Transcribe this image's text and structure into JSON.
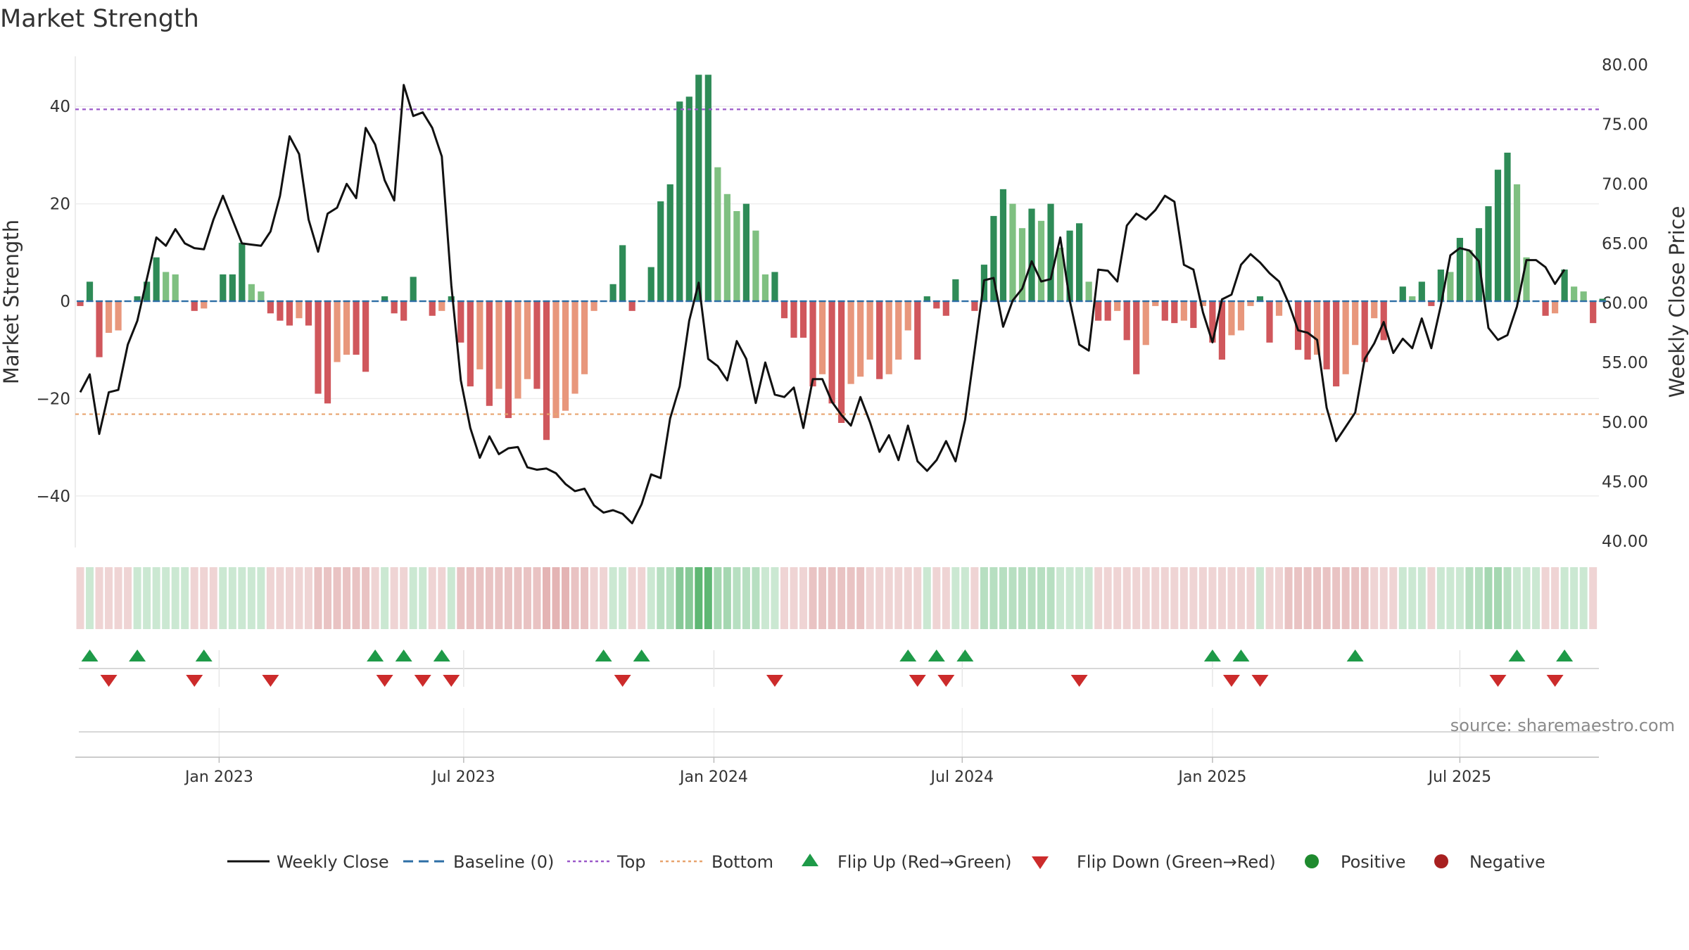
{
  "chart_data": {
    "type": "bar+line",
    "title": "Market Strength",
    "ylabel_left": "Market Strength",
    "ylabel_right": "Weekly Close Price",
    "left_ylim": [
      -50.5,
      50.0
    ],
    "right_ylim": [
      39.0,
      81.0
    ],
    "left_ticks": [
      "40",
      "20",
      "0",
      "−20",
      "−40"
    ],
    "left_tick_values": [
      40,
      20,
      0,
      -20,
      -40
    ],
    "right_ticks": [
      "80.00",
      "75.00",
      "70.00",
      "65.00",
      "60.00",
      "55.00",
      "50.00",
      "45.00",
      "40.00"
    ],
    "right_tick_values": [
      80,
      75,
      70,
      65,
      60,
      55,
      50,
      45,
      40
    ],
    "top_threshold": 39.4,
    "bottom_threshold": -23.2,
    "x_tick_labels": [
      "Jan 2023",
      "Jul 2023",
      "Jan 2024",
      "Jul 2024",
      "Jan 2025",
      "Jul 2025"
    ],
    "x_tick_weeks": [
      14.6,
      40.3,
      66.6,
      92.7,
      119,
      145
    ],
    "strength": [
      -1,
      4,
      -11.5,
      -6.5,
      -6,
      0,
      1,
      4,
      9,
      6,
      5.5,
      0,
      -2,
      -1.5,
      0,
      5.5,
      5.5,
      12,
      3.5,
      2,
      -2.5,
      -4,
      -5,
      -3.5,
      -5,
      -19,
      -21,
      -12.5,
      -11,
      -11,
      -14.5,
      0,
      1,
      -2.5,
      -4,
      5,
      0,
      -3,
      -2,
      1,
      -8.5,
      -17.5,
      -14,
      -21.5,
      -18,
      -24,
      -20,
      -16,
      -18,
      -28.5,
      -24,
      -22.5,
      -19,
      -15,
      -2,
      0,
      3.5,
      11.5,
      -2,
      0,
      7,
      20.5,
      24,
      41,
      42,
      46.5,
      46.5,
      27.5,
      22,
      18.5,
      20,
      14.5,
      5.5,
      6,
      -3.5,
      -7.5,
      -7.5,
      -17.5,
      -15,
      -21,
      -25,
      -17,
      -15.5,
      -12,
      -16,
      -15,
      -12,
      -6,
      -12,
      1,
      -1.5,
      -3,
      4.5,
      0,
      -2,
      7.5,
      17.5,
      23,
      20,
      15,
      19,
      16.5,
      20,
      11,
      14.5,
      16,
      4,
      -4,
      -4,
      -2,
      -8,
      -15,
      -9,
      -1,
      -4,
      -4.5,
      -4,
      -5.5,
      -1,
      -8.5,
      -12,
      -7,
      -6,
      -1,
      1,
      -8.5,
      -3,
      0,
      -10,
      -12,
      -11,
      -14,
      -17.5,
      -15,
      -9,
      -12.5,
      -3.5,
      -8,
      0,
      3,
      1,
      4,
      -1,
      6.5,
      6,
      13,
      10.5,
      15,
      19.5,
      27,
      30.5,
      24,
      9,
      0,
      -3,
      -2.5,
      6.5,
      3,
      2,
      -4.5,
      0.5
    ],
    "weekly_close": [
      52.5,
      54,
      49,
      52.5,
      52.7,
      56.5,
      58.5,
      62,
      65.5,
      64.8,
      66.2,
      65,
      64.6,
      64.5,
      67,
      69,
      67,
      65,
      64.9,
      64.8,
      66,
      69,
      74,
      72.5,
      67,
      64.3,
      67.5,
      68,
      70,
      68.8,
      74.7,
      73.3,
      70.3,
      68.6,
      78.3,
      75.7,
      76,
      74.7,
      72.3,
      61.5,
      53.5,
      49.5,
      47,
      48.8,
      47.3,
      47.8,
      47.9,
      46.2,
      46,
      46.1,
      45.7,
      44.8,
      44.2,
      44.4,
      43,
      42.4,
      42.6,
      42.3,
      41.5,
      43.1,
      45.6,
      45.3,
      50.3,
      53,
      58.5,
      61.7,
      55.3,
      54.7,
      53.5,
      56.8,
      55.3,
      51.6,
      55,
      52.3,
      52.1,
      52.9,
      49.5,
      53.6,
      53.6,
      51.7,
      50.6,
      49.7,
      52.1,
      50,
      47.5,
      48.9,
      46.8,
      49.7,
      46.7,
      45.9,
      46.8,
      48.4,
      46.7,
      50.2,
      56,
      61.9,
      62.1,
      58,
      60.2,
      61.2,
      63.5,
      61.8,
      62,
      65.5,
      60.2,
      56.5,
      56,
      62.8,
      62.7,
      61.8,
      66.5,
      67.5,
      67,
      67.8,
      69,
      68.5,
      63.2,
      62.8,
      59.2,
      56.7,
      60.3,
      60.7,
      63.2,
      64.1,
      63.4,
      62.5,
      61.8,
      60,
      57.7,
      57.5,
      56.9,
      51.2,
      48.4,
      49.6,
      50.8,
      55.3,
      56.6,
      58.4,
      55.8,
      57,
      56.2,
      58.7,
      56.2,
      59.8,
      64,
      64.6,
      64.4,
      63.5,
      57.9,
      56.9,
      57.3,
      59.7,
      63.6,
      63.6,
      63,
      61.6,
      62.8
    ],
    "band_intensity": [
      0.17,
      0.17,
      0.17,
      0.17,
      0.17,
      0.17,
      0.17,
      0.17,
      0.17,
      0.17,
      0.17,
      0.17,
      0.17,
      0.17,
      0.17,
      0.17,
      0.17,
      0.17,
      0.17,
      0.17,
      0.17,
      0.17,
      0.17,
      0.17,
      0.17,
      0.28,
      0.28,
      0.28,
      0.28,
      0.28,
      0.28,
      0.17,
      0.17,
      0.17,
      0.17,
      0.17,
      0.17,
      0.17,
      0.17,
      0.17,
      0.28,
      0.28,
      0.28,
      0.28,
      0.28,
      0.28,
      0.28,
      0.28,
      0.28,
      0.38,
      0.38,
      0.38,
      0.28,
      0.28,
      0.17,
      0.17,
      0.17,
      0.17,
      0.17,
      0.17,
      0.17,
      0.28,
      0.28,
      0.55,
      0.55,
      0.78,
      0.78,
      0.38,
      0.38,
      0.28,
      0.28,
      0.28,
      0.17,
      0.17,
      0.17,
      0.17,
      0.17,
      0.28,
      0.28,
      0.28,
      0.28,
      0.28,
      0.28,
      0.17,
      0.17,
      0.17,
      0.17,
      0.17,
      0.17,
      0.17,
      0.17,
      0.17,
      0.17,
      0.17,
      0.17,
      0.28,
      0.28,
      0.28,
      0.28,
      0.28,
      0.28,
      0.28,
      0.28,
      0.17,
      0.17,
      0.17,
      0.17,
      0.17,
      0.17,
      0.17,
      0.17,
      0.17,
      0.17,
      0.17,
      0.17,
      0.17,
      0.17,
      0.17,
      0.17,
      0.17,
      0.17,
      0.17,
      0.17,
      0.17,
      0.17,
      0.17,
      0.17,
      0.28,
      0.28,
      0.28,
      0.28,
      0.28,
      0.28,
      0.28,
      0.28,
      0.28,
      0.17,
      0.17,
      0.17,
      0.17,
      0.17,
      0.17,
      0.17,
      0.17,
      0.17,
      0.17,
      0.28,
      0.28,
      0.38,
      0.38,
      0.28,
      0.17,
      0.17,
      0.17,
      0.17,
      0.17,
      0.17,
      0.17,
      0.17,
      0.17
    ],
    "flip_up_weeks": [
      1,
      6,
      13,
      31,
      34,
      38,
      55,
      59,
      87,
      90,
      93,
      119,
      122,
      134,
      151,
      156
    ],
    "flip_down_weeks": [
      3,
      12,
      20,
      32,
      36,
      39,
      57,
      73,
      88,
      91,
      105,
      121,
      124,
      149,
      155
    ],
    "legend": [
      "Weekly Close",
      "Baseline (0)",
      "Top",
      "Bottom",
      "Flip Up (Red→Green)",
      "Flip Down (Green→Red)",
      "Positive",
      "Negative"
    ],
    "source": "source: sharemaestro.com"
  },
  "colors": {
    "pos_dark": "#2e8b57",
    "pos_light": "#7fc081",
    "neg_dark": "#d0575c",
    "neg_light": "#e8977c",
    "line": "#111111",
    "baseline": "#2e6fa6",
    "top": "#9b59c9",
    "bottom": "#e8a46f",
    "flip_up": "#1e9a48",
    "flip_down": "#cc2b2b",
    "positive_dot": "#1e8a2e",
    "negative_dot": "#a82020",
    "band_pos": "#4caf64",
    "band_neg": "#c96a6a"
  }
}
